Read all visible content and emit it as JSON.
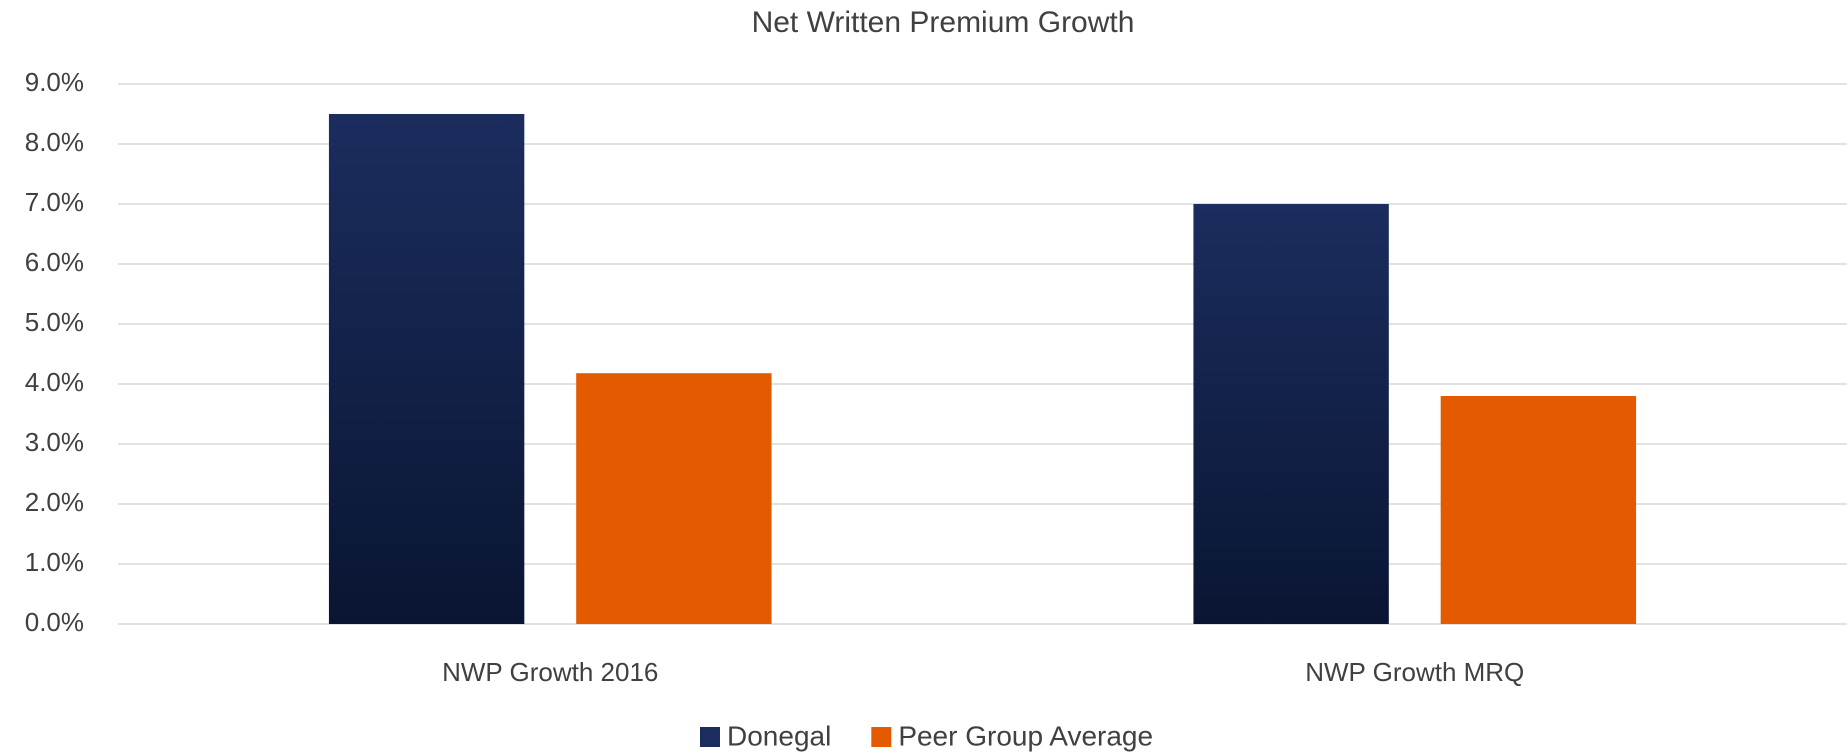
{
  "chart_data": {
    "type": "bar",
    "title": "Net Written Premium Growth",
    "categories": [
      "NWP Growth 2016",
      "NWP Growth MRQ"
    ],
    "series": [
      {
        "name": "Donegal",
        "color": "#1b2d5e",
        "values": [
          8.5,
          7.0
        ]
      },
      {
        "name": "Peer Group Average",
        "color": "#e35a00",
        "values": [
          4.18,
          3.8
        ]
      }
    ],
    "ylim": [
      0,
      9
    ],
    "yticks": [
      {
        "value": 0,
        "label": "0.0%"
      },
      {
        "value": 1,
        "label": "1.0%"
      },
      {
        "value": 2,
        "label": "2.0%"
      },
      {
        "value": 3,
        "label": "3.0%"
      },
      {
        "value": 4,
        "label": "4.0%"
      },
      {
        "value": 5,
        "label": "5.0%"
      },
      {
        "value": 6,
        "label": "6.0%"
      },
      {
        "value": 7,
        "label": "7.0%"
      },
      {
        "value": 8,
        "label": "8.0%"
      },
      {
        "value": 9,
        "label": "9.0%"
      }
    ],
    "grid": true,
    "legend": "bottom"
  }
}
